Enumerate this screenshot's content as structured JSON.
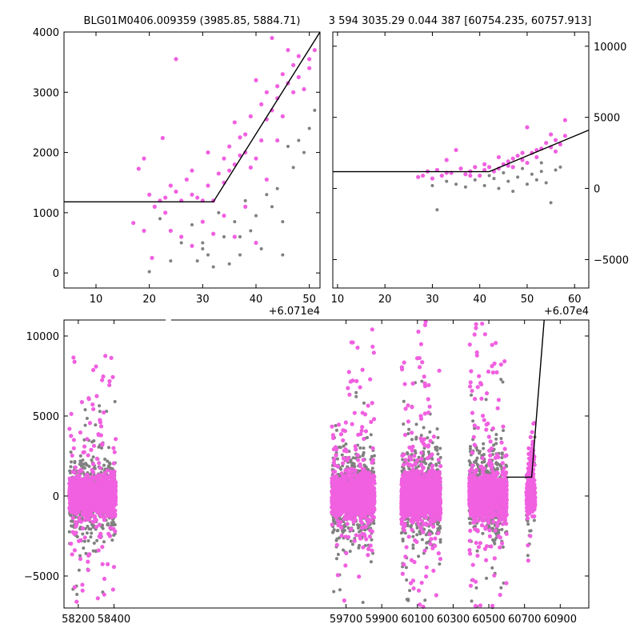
{
  "header": {
    "left_title": "BLG01M0406.009359 (3985.85, 5884.71)",
    "right_title": "3 594 3035.29 0.044 387 [60754.235, 60757.913]"
  },
  "colors": {
    "primary_points": "#f060e0",
    "secondary_points": "#808080",
    "fit_line": "#000000"
  },
  "chart_data": [
    {
      "type": "scatter",
      "panel": "top-left",
      "x_offset_label": "+6.071e4",
      "xlim": [
        4,
        52
      ],
      "ylim": [
        -250,
        4000
      ],
      "x_ticks": [
        "10",
        "20",
        "30",
        "40",
        "50"
      ],
      "y_ticks": [
        "0",
        "1000",
        "2000",
        "3000",
        "4000"
      ],
      "fit_line": [
        [
          4,
          1180
        ],
        [
          32,
          1180
        ],
        [
          52,
          4000
        ]
      ],
      "series": [
        {
          "color": "magenta",
          "points": [
            [
              17,
              830
            ],
            [
              18,
              1730
            ],
            [
              19,
              1900
            ],
            [
              20,
              1300
            ],
            [
              20.5,
              250
            ],
            [
              21,
              1100
            ],
            [
              22,
              1200
            ],
            [
              22.5,
              2240
            ],
            [
              23,
              1250
            ],
            [
              24,
              1450
            ],
            [
              25,
              3550
            ],
            [
              25,
              1350
            ],
            [
              26,
              1200
            ],
            [
              27,
              1550
            ],
            [
              28,
              1700
            ],
            [
              28,
              1300
            ],
            [
              29,
              1250
            ],
            [
              30,
              1200
            ],
            [
              31,
              1450
            ],
            [
              31,
              2000
            ],
            [
              32,
              1200
            ],
            [
              33,
              1650
            ],
            [
              34,
              1900
            ],
            [
              34,
              1500
            ],
            [
              35,
              2100
            ],
            [
              35,
              1700
            ],
            [
              36,
              2500
            ],
            [
              36,
              1800
            ],
            [
              37,
              2250
            ],
            [
              37,
              1950
            ],
            [
              38,
              2300
            ],
            [
              38,
              2000
            ],
            [
              39,
              1750
            ],
            [
              39,
              2600
            ],
            [
              40,
              1900
            ],
            [
              40,
              3200
            ],
            [
              41,
              2800
            ],
            [
              41,
              2200
            ],
            [
              42,
              2550
            ],
            [
              42,
              3000
            ],
            [
              43,
              3900
            ],
            [
              43,
              2700
            ],
            [
              44,
              2900
            ],
            [
              44,
              3100
            ],
            [
              45,
              3300
            ],
            [
              45,
              2600
            ],
            [
              46,
              3700
            ],
            [
              46,
              3150
            ],
            [
              47,
              3000
            ],
            [
              47,
              3450
            ],
            [
              48,
              3250
            ],
            [
              48,
              3600
            ],
            [
              49,
              3050
            ],
            [
              50,
              3550
            ],
            [
              50,
              3400
            ],
            [
              51,
              3700
            ],
            [
              19,
              700
            ],
            [
              23,
              1000
            ],
            [
              24,
              700
            ],
            [
              26,
              600
            ],
            [
              28,
              450
            ],
            [
              30,
              850
            ],
            [
              32,
              650
            ],
            [
              34,
              950
            ],
            [
              36,
              600
            ],
            [
              38,
              1100
            ],
            [
              40,
              500
            ],
            [
              42,
              1550
            ],
            [
              44,
              2200
            ]
          ]
        },
        {
          "color": "gray",
          "points": [
            [
              20,
              20
            ],
            [
              22,
              900
            ],
            [
              24,
              200
            ],
            [
              26,
              500
            ],
            [
              28,
              800
            ],
            [
              29,
              200
            ],
            [
              30,
              400
            ],
            [
              31,
              300
            ],
            [
              32,
              100
            ],
            [
              33,
              1000
            ],
            [
              34,
              600
            ],
            [
              35,
              150
            ],
            [
              36,
              850
            ],
            [
              37,
              300
            ],
            [
              38,
              1200
            ],
            [
              39,
              700
            ],
            [
              40,
              950
            ],
            [
              41,
              400
            ],
            [
              42,
              1300
            ],
            [
              43,
              1100
            ],
            [
              44,
              1400
            ],
            [
              45,
              300
            ],
            [
              46,
              2100
            ],
            [
              47,
              1750
            ],
            [
              48,
              2200
            ],
            [
              49,
              2000
            ],
            [
              50,
              2400
            ],
            [
              51,
              2700
            ],
            [
              30,
              500
            ],
            [
              37,
              600
            ],
            [
              45,
              850
            ]
          ]
        }
      ]
    },
    {
      "type": "scatter",
      "panel": "top-right",
      "x_offset_label": "+6.07e4",
      "xlim": [
        9,
        63
      ],
      "ylim": [
        -7000,
        11000
      ],
      "x_ticks": [
        "10",
        "20",
        "30",
        "40",
        "50",
        "60"
      ],
      "y_ticks": [
        "−5000",
        "0",
        "5000",
        "10000"
      ],
      "fit_line": [
        [
          9,
          1180
        ],
        [
          42,
          1180
        ],
        [
          63,
          4100
        ]
      ],
      "series": [
        {
          "color": "magenta",
          "points": [
            [
              27,
              800
            ],
            [
              28,
              900
            ],
            [
              29,
              1200
            ],
            [
              30,
              700
            ],
            [
              31,
              1300
            ],
            [
              32,
              900
            ],
            [
              33,
              2000
            ],
            [
              34,
              1100
            ],
            [
              35,
              2700
            ],
            [
              36,
              1400
            ],
            [
              37,
              1000
            ],
            [
              38,
              1200
            ],
            [
              39,
              1500
            ],
            [
              40,
              900
            ],
            [
              41,
              1300
            ],
            [
              42,
              1500
            ],
            [
              43,
              1200
            ],
            [
              44,
              2200
            ],
            [
              45,
              1700
            ],
            [
              46,
              1900
            ],
            [
              47,
              1500
            ],
            [
              48,
              2300
            ],
            [
              49,
              2000
            ],
            [
              50,
              1800
            ],
            [
              50,
              4300
            ],
            [
              51,
              2500
            ],
            [
              52,
              2200
            ],
            [
              53,
              2800
            ],
            [
              54,
              3200
            ],
            [
              55,
              2900
            ],
            [
              56,
              3400
            ],
            [
              57,
              3100
            ],
            [
              58,
              3700
            ],
            [
              58,
              4800
            ],
            [
              44,
              1400
            ],
            [
              47,
              2100
            ],
            [
              52,
              2700
            ],
            [
              55,
              3800
            ],
            [
              33,
              1100
            ],
            [
              38,
              900
            ],
            [
              41,
              1700
            ],
            [
              46,
              1600
            ],
            [
              49,
              2500
            ],
            [
              56,
              2600
            ]
          ]
        },
        {
          "color": "gray",
          "points": [
            [
              30,
              200
            ],
            [
              31,
              -1500
            ],
            [
              33,
              500
            ],
            [
              35,
              300
            ],
            [
              37,
              100
            ],
            [
              39,
              600
            ],
            [
              41,
              200
            ],
            [
              43,
              700
            ],
            [
              44,
              0
            ],
            [
              46,
              500
            ],
            [
              47,
              -200
            ],
            [
              48,
              800
            ],
            [
              50,
              300
            ],
            [
              51,
              1000
            ],
            [
              52,
              600
            ],
            [
              53,
              1200
            ],
            [
              54,
              400
            ],
            [
              55,
              -1000
            ],
            [
              56,
              1300
            ],
            [
              57,
              1500
            ],
            [
              42,
              900
            ],
            [
              45,
              1100
            ],
            [
              49,
              1400
            ],
            [
              53,
              1800
            ]
          ]
        }
      ]
    },
    {
      "type": "scatter",
      "panel": "bottom",
      "xlim": [
        58120,
        61060
      ],
      "ylim": [
        -7000,
        11000
      ],
      "x_ticks": [
        "58200",
        "58400",
        "59700",
        "59900",
        "60100",
        "60300",
        "60500",
        "60700",
        "60900"
      ],
      "y_ticks": [
        "−5000",
        "0",
        "5000",
        "10000"
      ],
      "fit_line": [
        [
          60600,
          1180
        ],
        [
          60740,
          1180
        ],
        [
          60810,
          11000
        ]
      ],
      "season_clusters": [
        {
          "x_range": [
            58150,
            58410
          ],
          "core_spread": 900,
          "tail_max": 9500,
          "tail_min": -6700
        },
        {
          "x_range": [
            59620,
            59860
          ],
          "core_spread": 1000,
          "tail_max": 11000,
          "tail_min": -7000
        },
        {
          "x_range": [
            60010,
            60230
          ],
          "core_spread": 1100,
          "tail_max": 11000,
          "tail_min": -7000
        },
        {
          "x_range": [
            60390,
            60600
          ],
          "core_spread": 1000,
          "tail_max": 11000,
          "tail_min": -7000
        },
        {
          "x_range": [
            60710,
            60760
          ],
          "core_spread": 800,
          "tail_max": 5000,
          "tail_min": -500
        }
      ]
    }
  ]
}
